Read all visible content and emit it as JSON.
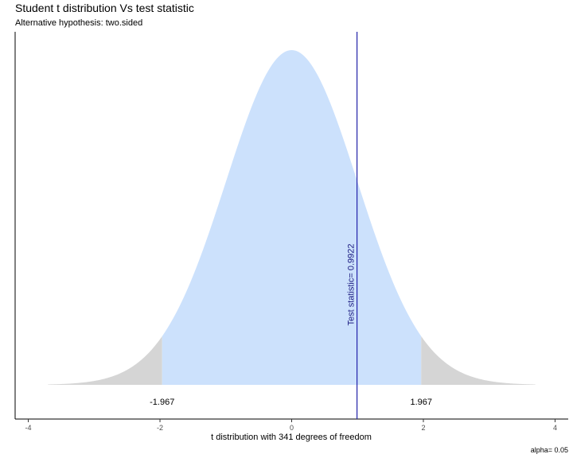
{
  "chart_data": {
    "type": "area",
    "title": "Student t distribution Vs test statistic",
    "subtitle": "Alternative hypothesis: two.sided",
    "xlabel": "t distribution with 341 degrees of freedom",
    "caption": "alpha= 0.05",
    "degrees_of_freedom": 341,
    "xlim": [
      -4.2,
      4.2
    ],
    "x_ticks": [
      -4,
      -2,
      0,
      2,
      4
    ],
    "curve_range": [
      -3.7,
      3.7
    ],
    "critical_values": [
      -1.967,
      1.967
    ],
    "critical_labels": [
      "-1.967",
      "1.967"
    ],
    "test_statistic": 0.9922,
    "test_statistic_label": "Test statistic= 0.9922",
    "colors": {
      "acceptance_region": "#cce1fc",
      "rejection_region": "#d5d5d5",
      "test_statistic_line": "#2222aa",
      "test_statistic_text": "#1a1a80",
      "axis": "#000000"
    }
  }
}
